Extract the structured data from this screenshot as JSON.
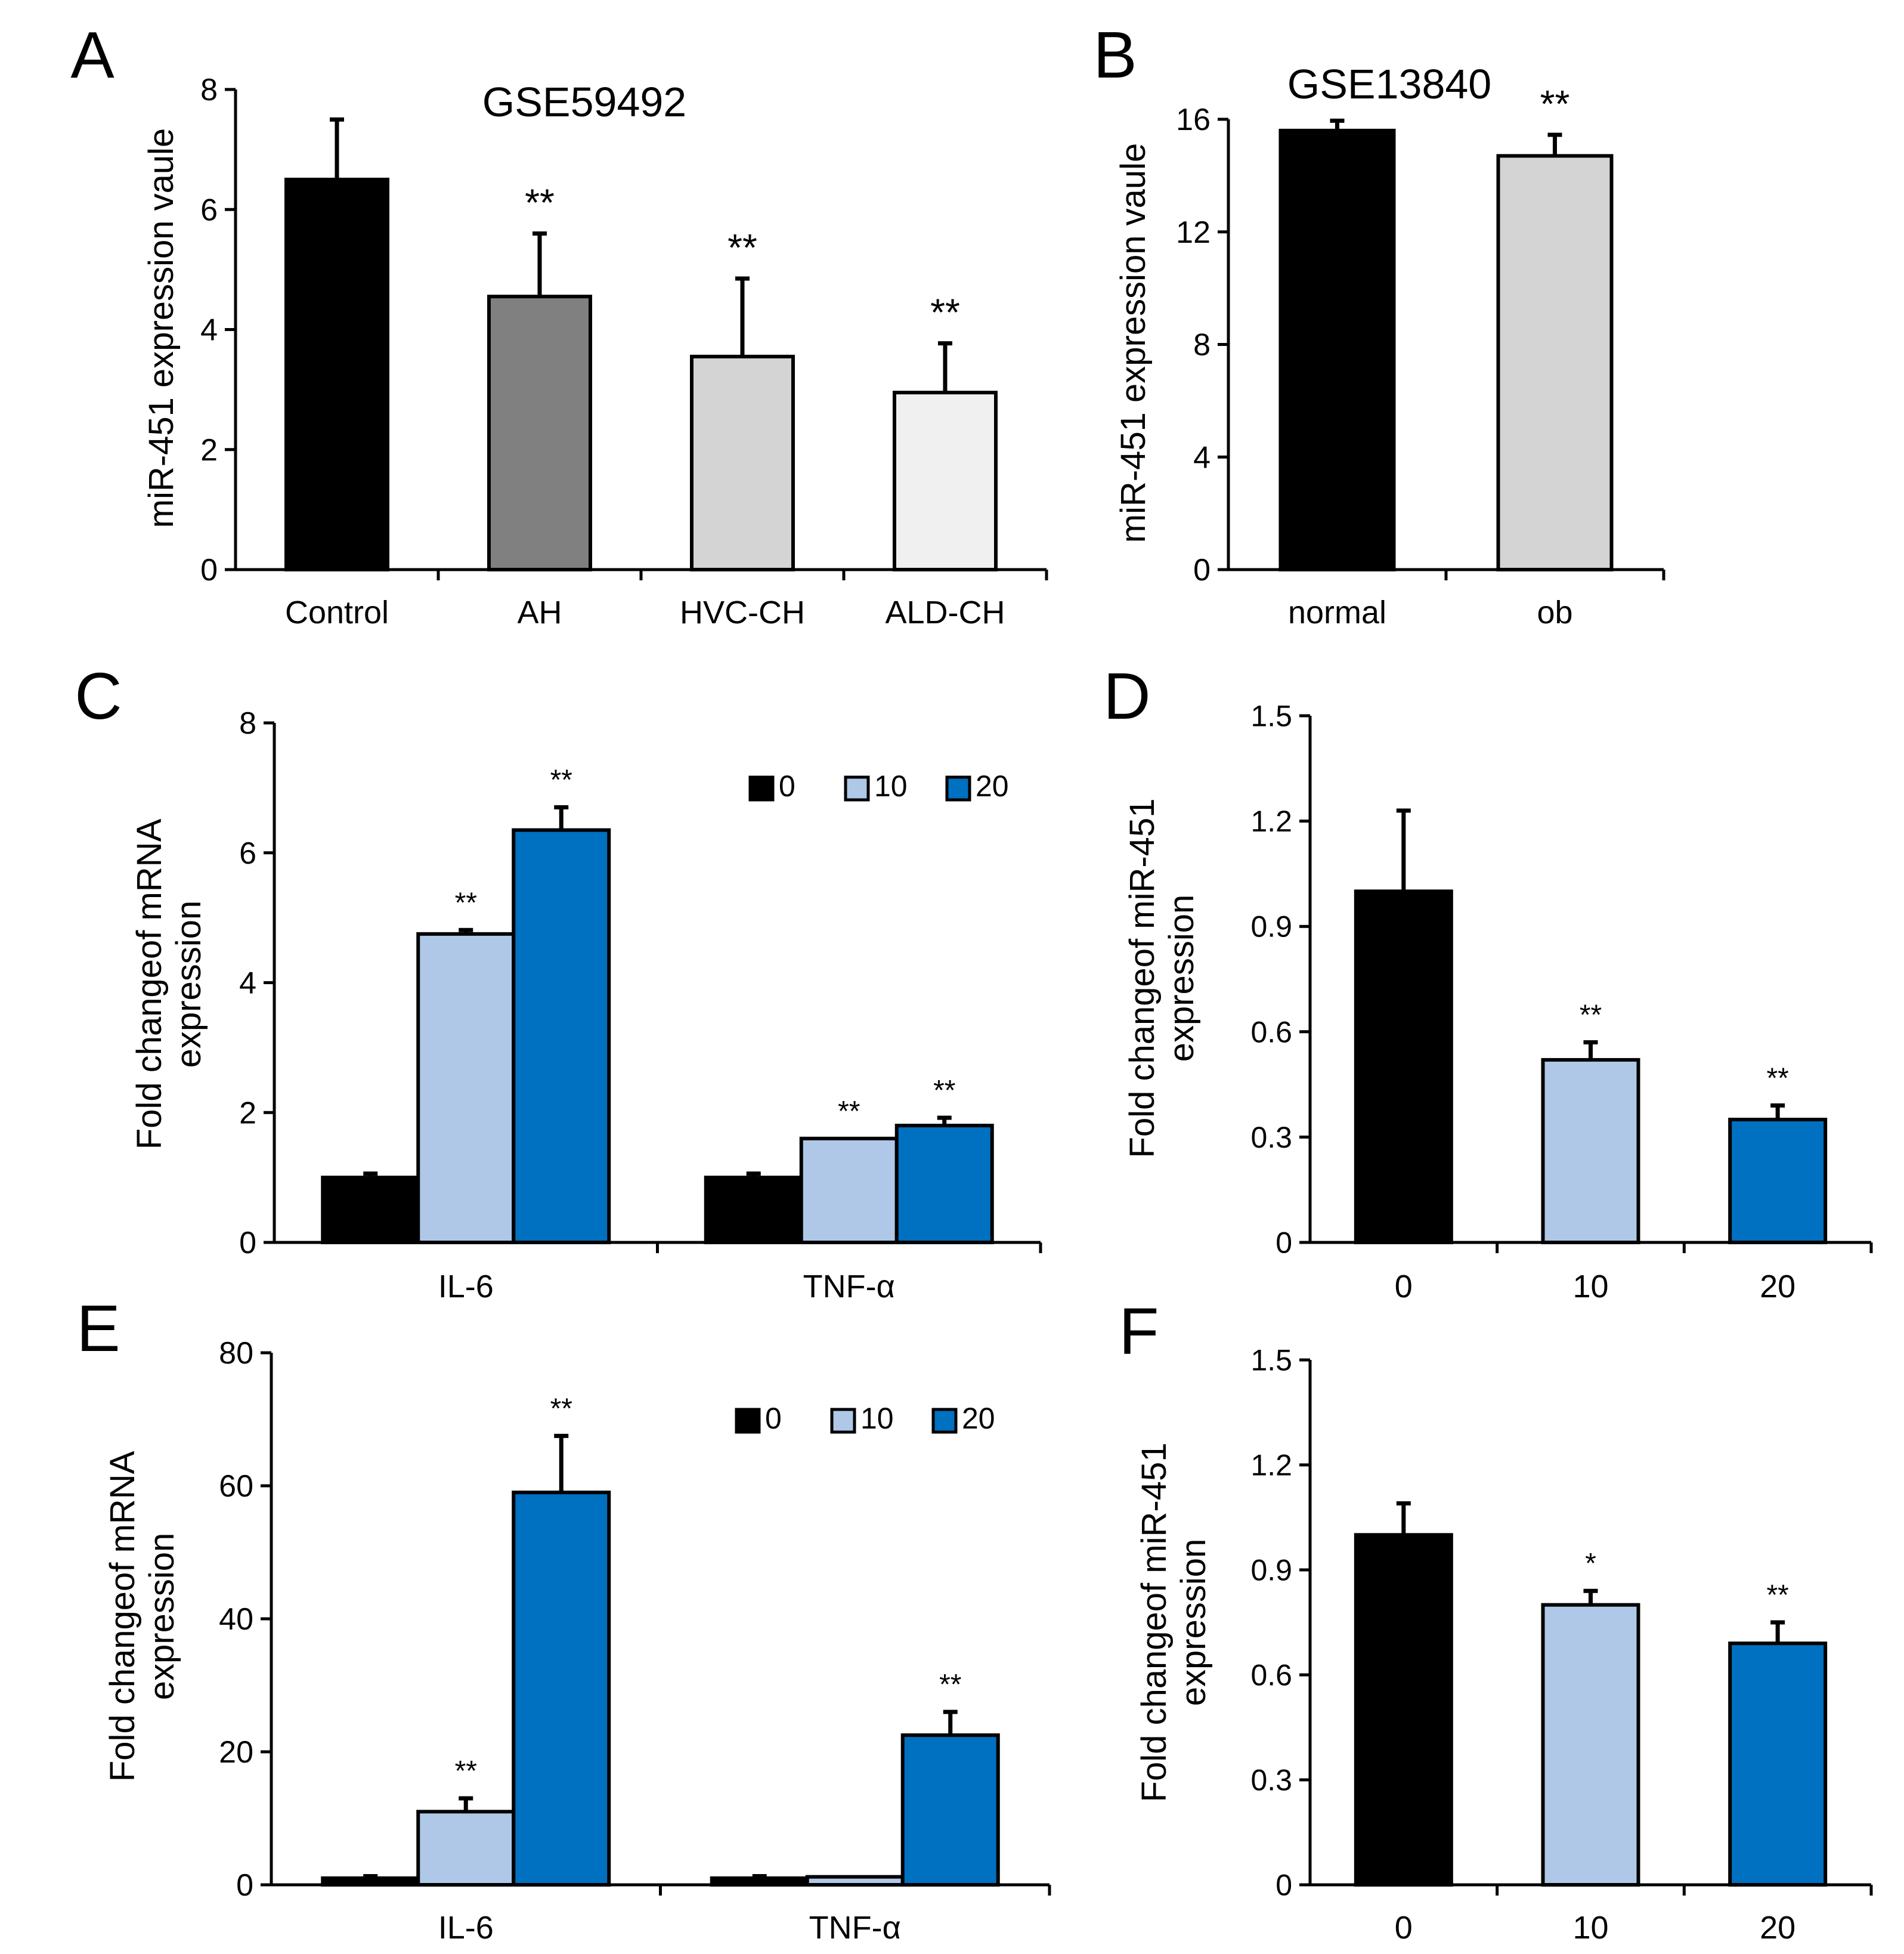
{
  "colors": {
    "black": "#000000",
    "dark_gray": "#808080",
    "light_gray": "#d4d4d4",
    "pale_gray": "#f0f0f0",
    "light_blue": "#afc8e8",
    "blue": "#0070c0"
  },
  "chart_data": [
    {
      "id": "A",
      "panel_letter": "A",
      "type": "bar",
      "title": "GSE59492",
      "ylabel": "miR-451 expression vaule",
      "xlabel": "",
      "ylim": [
        0,
        8
      ],
      "yticks": [
        0,
        2,
        4,
        6,
        8
      ],
      "ytick_labels": [
        "0",
        "2",
        "4",
        "6",
        "8"
      ],
      "categories": [
        "Control",
        "AH",
        "HVC-CH",
        "ALD-CH"
      ],
      "values": [
        6.5,
        4.55,
        3.55,
        2.95
      ],
      "errors": [
        1.0,
        1.05,
        1.3,
        0.82
      ],
      "bar_colors": [
        "black",
        "dark_gray",
        "light_gray",
        "pale_gray"
      ],
      "significance": [
        "",
        "**",
        "**",
        "**"
      ]
    },
    {
      "id": "B",
      "panel_letter": "B",
      "type": "bar",
      "title": "GSE13840",
      "ylabel": "miR-451 expression vaule",
      "xlabel": "",
      "ylim": [
        0,
        16
      ],
      "yticks": [
        0,
        4,
        8,
        12,
        16
      ],
      "ytick_labels": [
        "0",
        "4",
        "8",
        "12",
        "16"
      ],
      "categories": [
        "normal",
        "ob"
      ],
      "values": [
        15.6,
        14.7
      ],
      "errors": [
        0.35,
        0.75
      ],
      "bar_colors": [
        "black",
        "light_gray"
      ],
      "significance": [
        "",
        "**"
      ]
    },
    {
      "id": "C",
      "panel_letter": "C",
      "type": "bar",
      "title": "",
      "ylabel_lines": [
        "Fold changeof mRNA",
        "expression"
      ],
      "ylim": [
        0,
        8
      ],
      "yticks": [
        0,
        2,
        4,
        6,
        8
      ],
      "ytick_labels": [
        "0",
        "2",
        "4",
        "6",
        "8"
      ],
      "categories": [
        "IL-6",
        "TNF-α"
      ],
      "legend": [
        "0",
        "10",
        "20"
      ],
      "series": [
        {
          "name": "0",
          "color": "black",
          "values": [
            1.0,
            1.0
          ],
          "errors": [
            0.06,
            0.06
          ],
          "significance": [
            "",
            ""
          ]
        },
        {
          "name": "10",
          "color": "light_blue",
          "values": [
            4.75,
            1.6
          ],
          "errors": [
            0.06,
            0.0
          ],
          "significance": [
            "**",
            "**"
          ]
        },
        {
          "name": "20",
          "color": "blue",
          "values": [
            6.35,
            1.8
          ],
          "errors": [
            0.35,
            0.12
          ],
          "significance": [
            "**",
            "**"
          ]
        }
      ]
    },
    {
      "id": "D",
      "panel_letter": "D",
      "type": "bar",
      "title": "",
      "ylabel_lines": [
        "Fold changeof miR-451",
        "expression"
      ],
      "ylim": [
        0,
        1.5
      ],
      "yticks": [
        0,
        0.3,
        0.6,
        0.9,
        1.2,
        1.5
      ],
      "ytick_labels": [
        "0",
        "0.3",
        "0.6",
        "0.9",
        "1.2",
        "1.5"
      ],
      "categories": [
        "0",
        "10",
        "20"
      ],
      "values": [
        1.0,
        0.52,
        0.35
      ],
      "errors": [
        0.23,
        0.05,
        0.04
      ],
      "bar_colors": [
        "black",
        "light_blue",
        "blue"
      ],
      "significance": [
        "",
        "**",
        "**"
      ]
    },
    {
      "id": "E",
      "panel_letter": "E",
      "type": "bar",
      "title": "",
      "ylabel_lines": [
        "Fold changeof mRNA",
        "expression"
      ],
      "ylim": [
        0,
        80
      ],
      "yticks": [
        0,
        20,
        40,
        60,
        80
      ],
      "ytick_labels": [
        "0",
        "20",
        "40",
        "60",
        "80"
      ],
      "categories": [
        "IL-6",
        "TNF-α"
      ],
      "legend": [
        "0",
        "10",
        "20"
      ],
      "series": [
        {
          "name": "0",
          "color": "black",
          "values": [
            1.0,
            1.0
          ],
          "errors": [
            0.3,
            0.3
          ],
          "significance": [
            "",
            ""
          ]
        },
        {
          "name": "10",
          "color": "light_blue",
          "values": [
            11,
            1.2
          ],
          "errors": [
            2.0,
            0.0
          ],
          "significance": [
            "**",
            ""
          ]
        },
        {
          "name": "20",
          "color": "blue",
          "values": [
            59,
            22.5
          ],
          "errors": [
            8.5,
            3.5
          ],
          "significance": [
            "**",
            "**"
          ]
        }
      ]
    },
    {
      "id": "F",
      "panel_letter": "F",
      "type": "bar",
      "title": "",
      "ylabel_lines": [
        "Fold changeof miR-451",
        "expression"
      ],
      "ylim": [
        0,
        1.5
      ],
      "yticks": [
        0,
        0.3,
        0.6,
        0.9,
        1.2,
        1.5
      ],
      "ytick_labels": [
        "0",
        "0.3",
        "0.6",
        "0.9",
        "1.2",
        "1.5"
      ],
      "categories": [
        "0",
        "10",
        "20"
      ],
      "values": [
        1.0,
        0.8,
        0.69
      ],
      "errors": [
        0.09,
        0.04,
        0.06
      ],
      "bar_colors": [
        "black",
        "light_blue",
        "blue"
      ],
      "significance": [
        "",
        "*",
        "**"
      ]
    }
  ]
}
